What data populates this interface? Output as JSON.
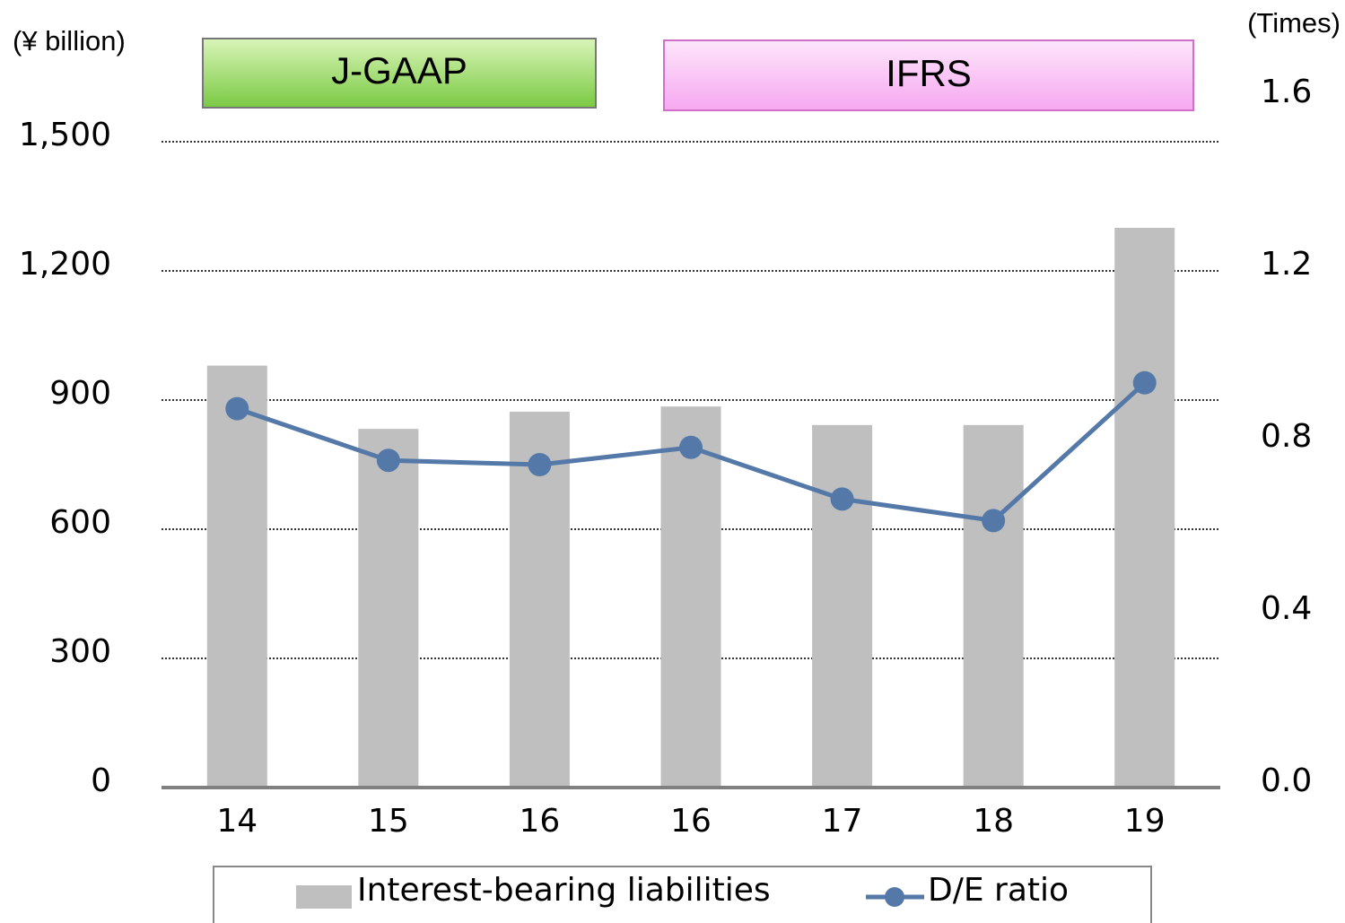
{
  "chart_data": {
    "type": "bar_line",
    "y_label": "(¥ billion)",
    "y2_label": "(Times)",
    "annotations": [
      "J-GAAP",
      "IFRS"
    ],
    "categories": [
      "14",
      "15",
      "16",
      "16",
      "17",
      "18",
      "19"
    ],
    "series": [
      {
        "name": "Interest-bearing liabilities",
        "type": "bar",
        "color": "#bfbfbf",
        "values": [
          980,
          833,
          873,
          885,
          842,
          842,
          1300
        ]
      },
      {
        "name": "D/E ratio",
        "type": "line",
        "axis": "y2",
        "color": "#5479a8",
        "values": [
          0.88,
          0.76,
          0.75,
          0.79,
          0.67,
          0.62,
          0.94
        ]
      }
    ],
    "ylim": [
      0,
      1500
    ],
    "yticks": [
      0,
      300,
      600,
      900,
      {
        "value": 1200,
        "label": "1,200"
      },
      {
        "value": 1500,
        "label": "1,500"
      }
    ],
    "y2lim": [
      0,
      1.6
    ],
    "y2ticks": [
      {
        "value": 0,
        "label": "0.0"
      },
      0.4,
      0.8,
      1.2,
      1.6
    ],
    "grid": true,
    "legend": "bottom"
  }
}
